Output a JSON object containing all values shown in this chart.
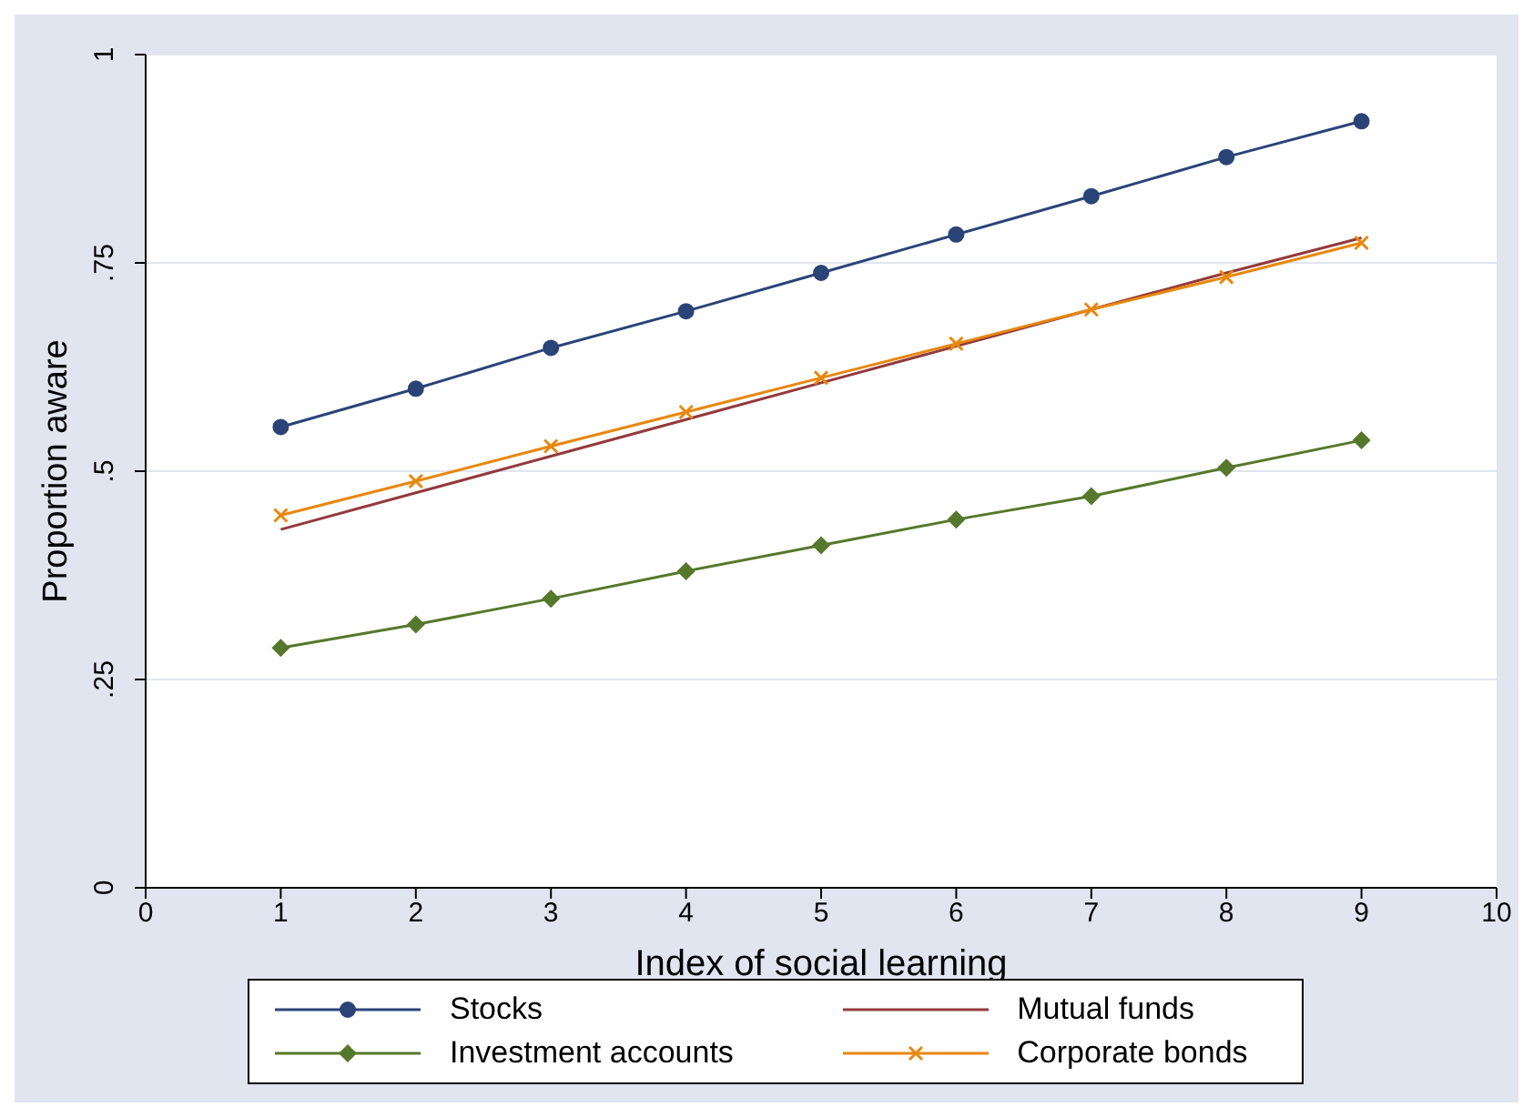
{
  "chart_data": {
    "type": "line",
    "xlabel": "Index of social learning",
    "ylabel": "Proportion aware",
    "x": [
      1,
      2,
      3,
      4,
      5,
      6,
      7,
      8,
      9
    ],
    "series": [
      {
        "name": "Stocks",
        "color": "#2a4478",
        "marker": "circle",
        "values": [
          0.553,
          0.599,
          0.648,
          0.692,
          0.738,
          0.784,
          0.83,
          0.877,
          0.92
        ]
      },
      {
        "name": "Mutual funds",
        "color": "#94393c",
        "marker": "none",
        "values": [
          0.43,
          0.474,
          0.518,
          0.562,
          0.606,
          0.65,
          0.694,
          0.738,
          0.78
        ]
      },
      {
        "name": "Investment accounts",
        "color": "#55782c",
        "marker": "diamond",
        "values": [
          0.288,
          0.316,
          0.347,
          0.38,
          0.411,
          0.442,
          0.47,
          0.504,
          0.537
        ]
      },
      {
        "name": "Corporate bonds",
        "color": "#e8870e",
        "marker": "cross",
        "values": [
          0.447,
          0.488,
          0.53,
          0.571,
          0.612,
          0.653,
          0.694,
          0.733,
          0.774
        ]
      }
    ],
    "xlim": [
      0,
      10
    ],
    "xticks": [
      0,
      1,
      2,
      3,
      4,
      5,
      6,
      7,
      8,
      9,
      10
    ],
    "ylim": [
      0,
      1
    ],
    "yticks": [
      {
        "value": 0,
        "label": "0"
      },
      {
        "value": 0.25,
        "label": ".25"
      },
      {
        "value": 0.5,
        "label": ".5"
      },
      {
        "value": 0.75,
        "label": ".75"
      },
      {
        "value": 1,
        "label": "1"
      }
    ],
    "grid": "y",
    "legend": "bottom",
    "line_style": "solid"
  }
}
